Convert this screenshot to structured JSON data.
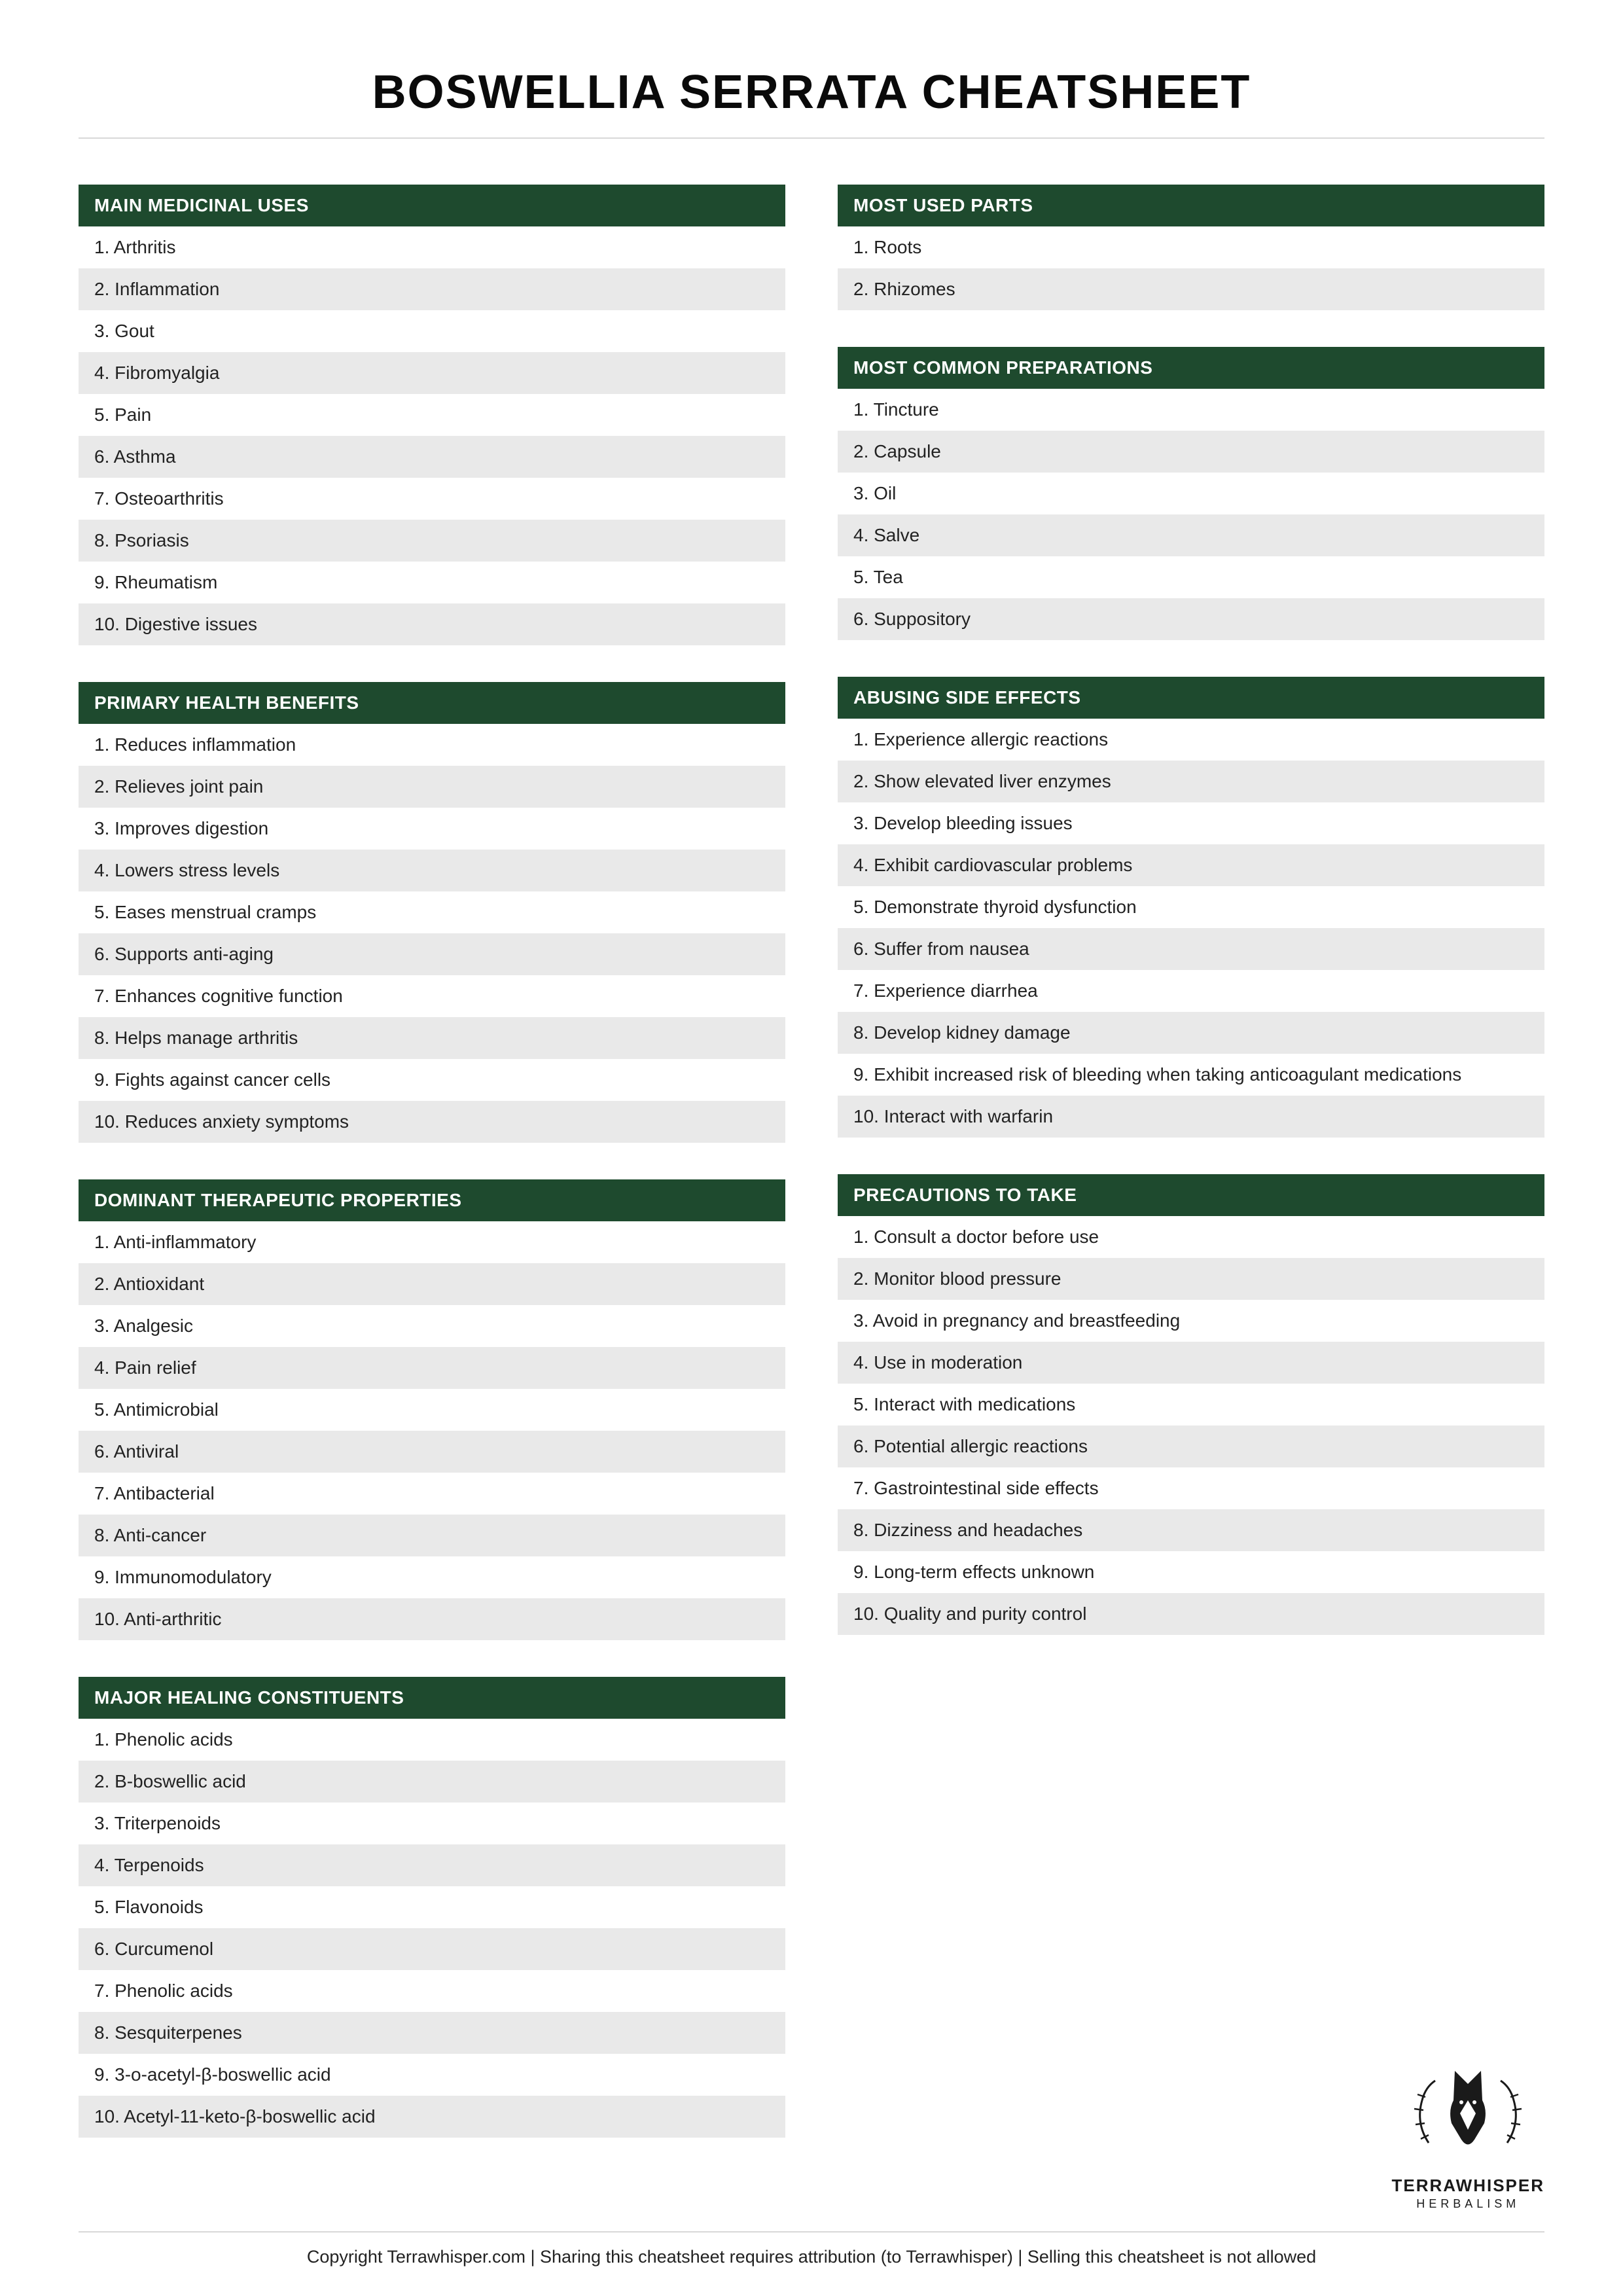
{
  "title": "BOSWELLIA SERRATA CHEATSHEET",
  "accent_color": "#1e4a2e",
  "alt_row_color": "#e9e9e9",
  "left_sections": [
    {
      "title": "MAIN MEDICINAL USES",
      "items": [
        "1. Arthritis",
        "2. Inflammation",
        "3. Gout",
        "4. Fibromyalgia",
        "5. Pain",
        "6. Asthma",
        "7. Osteoarthritis",
        "8. Psoriasis",
        "9. Rheumatism",
        "10. Digestive issues"
      ]
    },
    {
      "title": "PRIMARY HEALTH BENEFITS",
      "items": [
        "1. Reduces inflammation",
        "2. Relieves joint pain",
        "3. Improves digestion",
        "4. Lowers stress levels",
        "5. Eases menstrual cramps",
        "6. Supports anti-aging",
        "7. Enhances cognitive function",
        "8. Helps manage arthritis",
        "9. Fights against cancer cells",
        "10. Reduces anxiety symptoms"
      ]
    },
    {
      "title": "DOMINANT THERAPEUTIC PROPERTIES",
      "items": [
        "1. Anti-inflammatory",
        "2. Antioxidant",
        "3. Analgesic",
        "4. Pain relief",
        "5. Antimicrobial",
        "6. Antiviral",
        "7. Antibacterial",
        "8. Anti-cancer",
        "9. Immunomodulatory",
        "10. Anti-arthritic"
      ]
    },
    {
      "title": "MAJOR HEALING CONSTITUENTS",
      "items": [
        "1. Phenolic acids",
        "2. B-boswellic acid",
        "3. Triterpenoids",
        "4. Terpenoids",
        "5. Flavonoids",
        "6. Curcumenol",
        "7. Phenolic acids",
        "8. Sesquiterpenes",
        "9. 3-o-acetyl-β-boswellic acid",
        "10. Acetyl-11-keto-β-boswellic acid"
      ]
    }
  ],
  "right_sections": [
    {
      "title": "MOST USED PARTS",
      "items": [
        "1. Roots",
        "2. Rhizomes"
      ]
    },
    {
      "title": "MOST COMMON PREPARATIONS",
      "items": [
        "1. Tincture",
        "2. Capsule",
        "3. Oil",
        "4. Salve",
        "5. Tea",
        "6. Suppository"
      ]
    },
    {
      "title": "ABUSING SIDE EFFECTS",
      "items": [
        "1. Experience allergic reactions",
        "2. Show elevated liver enzymes",
        "3. Develop bleeding issues",
        "4. Exhibit cardiovascular problems",
        "5. Demonstrate thyroid dysfunction",
        "6. Suffer from nausea",
        "7. Experience diarrhea",
        "8. Develop kidney damage",
        "9. Exhibit increased risk of bleeding when taking anticoagulant medications",
        "10. Interact with warfarin"
      ]
    },
    {
      "title": "PRECAUTIONS TO TAKE",
      "items": [
        "1. Consult a doctor before use",
        "2. Monitor blood pressure",
        "3. Avoid in pregnancy and breastfeeding",
        "4. Use in moderation",
        "5. Interact with medications",
        "6. Potential allergic reactions",
        "7. Gastrointestinal side effects",
        "8. Dizziness and headaches",
        "9. Long-term effects unknown",
        "10. Quality and purity control"
      ]
    }
  ],
  "brand": {
    "name": "TERRAWHISPER",
    "tagline": "HERBALISM"
  },
  "footer": "Copyright Terrawhisper.com | Sharing this cheatsheet requires attribution (to Terrawhisper) | Selling this cheatsheet is not allowed"
}
